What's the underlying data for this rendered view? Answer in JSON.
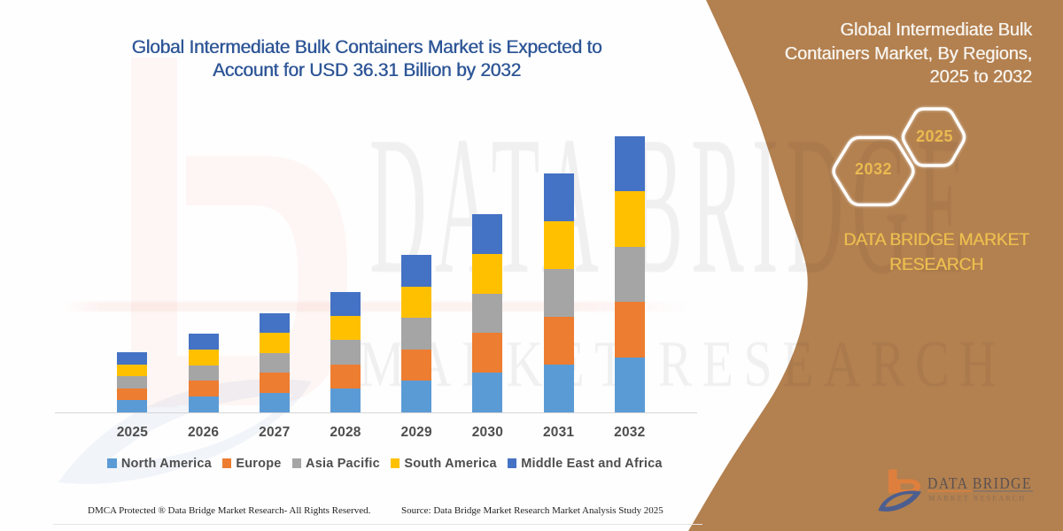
{
  "title": {
    "lines": [
      "Global Intermediate Bulk Containers Market is Expected to",
      "Account for USD 36.31 Billion by 2032"
    ],
    "color": "#2E5697"
  },
  "chart_data": {
    "type": "bar",
    "stacked": true,
    "title": "Global Intermediate Bulk Containers Market is Expected to Account for USD 36.31 Billion by 2032",
    "unit": "USD Billion",
    "categories": [
      "2025",
      "2026",
      "2027",
      "2028",
      "2029",
      "2030",
      "2031",
      "2032"
    ],
    "series": [
      {
        "name": "North America",
        "color": "#5B9BD5",
        "values": [
          1.58,
          2.07,
          2.6,
          3.16,
          4.13,
          5.2,
          6.27,
          7.26
        ]
      },
      {
        "name": "Europe",
        "color": "#ED7D31",
        "values": [
          1.58,
          2.07,
          2.6,
          3.16,
          4.13,
          5.2,
          6.27,
          7.26
        ]
      },
      {
        "name": "Asia Pacific",
        "color": "#A5A5A5",
        "values": [
          1.58,
          2.07,
          2.6,
          3.16,
          4.13,
          5.2,
          6.27,
          7.26
        ]
      },
      {
        "name": "South America",
        "color": "#FFC000",
        "values": [
          1.58,
          2.07,
          2.6,
          3.16,
          4.13,
          5.2,
          6.27,
          7.26
        ]
      },
      {
        "name": "Middle East and Africa",
        "color": "#4472C4",
        "values": [
          1.58,
          2.07,
          2.6,
          3.16,
          4.13,
          5.2,
          6.27,
          7.26
        ]
      }
    ],
    "totals": [
      7.9,
      10.35,
      13.0,
      15.8,
      20.65,
      26.0,
      31.35,
      36.31
    ],
    "ylim": [
      0,
      36.31
    ],
    "grid": false,
    "legend_position": "bottom",
    "xlabel": "",
    "ylabel": ""
  },
  "side_panel": {
    "heading_lines": [
      "Global Intermediate Bulk",
      "Containers Market, By Regions,",
      "2025 to 2032"
    ],
    "hexagons": [
      {
        "label": "2032"
      },
      {
        "label": "2025"
      }
    ],
    "brand_lines": [
      "DATA BRIDGE MARKET",
      "RESEARCH"
    ],
    "bg_color": "#B3804F",
    "gold_color": "#ECBD4F"
  },
  "logo": {
    "name": "DATA BRIDGE",
    "sub": "MARKET RESEARCH",
    "orange": "#E8813B",
    "blue": "#33549B"
  },
  "watermark": {
    "row1": "DATA BRIDGE",
    "row2": "MARKET RESEARCH"
  },
  "footer": {
    "left": "DMCA Protected ® Data Bridge Market Research-  All Rights Reserved.",
    "right": "Source: Data Bridge Market Research  Market Analysis Study 2025"
  }
}
